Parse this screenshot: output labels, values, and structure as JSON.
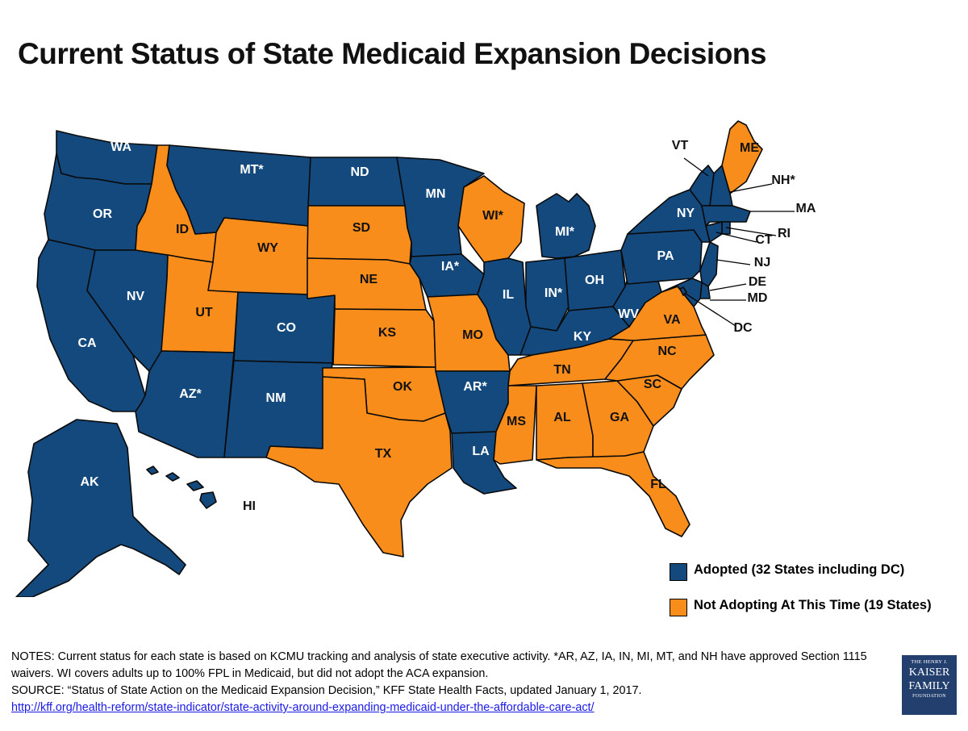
{
  "title": "Current Status of State Medicaid Expansion Decisions",
  "colors": {
    "adopted": "#14497d",
    "not_adopting": "#f98d1c",
    "label_on_adopted": "#ffffff",
    "label_on_not": "#111111"
  },
  "states": [
    {
      "abbr": "WA",
      "label": "WA",
      "status": "adopted"
    },
    {
      "abbr": "OR",
      "label": "OR",
      "status": "adopted"
    },
    {
      "abbr": "CA",
      "label": "CA",
      "status": "adopted"
    },
    {
      "abbr": "NV",
      "label": "NV",
      "status": "adopted"
    },
    {
      "abbr": "ID",
      "label": "ID",
      "status": "not_adopting"
    },
    {
      "abbr": "MT",
      "label": "MT*",
      "status": "adopted"
    },
    {
      "abbr": "WY",
      "label": "WY",
      "status": "not_adopting"
    },
    {
      "abbr": "UT",
      "label": "UT",
      "status": "not_adopting"
    },
    {
      "abbr": "AZ",
      "label": "AZ*",
      "status": "adopted"
    },
    {
      "abbr": "CO",
      "label": "CO",
      "status": "adopted"
    },
    {
      "abbr": "NM",
      "label": "NM",
      "status": "adopted"
    },
    {
      "abbr": "ND",
      "label": "ND",
      "status": "adopted"
    },
    {
      "abbr": "SD",
      "label": "SD",
      "status": "not_adopting"
    },
    {
      "abbr": "NE",
      "label": "NE",
      "status": "not_adopting"
    },
    {
      "abbr": "KS",
      "label": "KS",
      "status": "not_adopting"
    },
    {
      "abbr": "OK",
      "label": "OK",
      "status": "not_adopting"
    },
    {
      "abbr": "TX",
      "label": "TX",
      "status": "not_adopting"
    },
    {
      "abbr": "MN",
      "label": "MN",
      "status": "adopted"
    },
    {
      "abbr": "IA",
      "label": "IA*",
      "status": "adopted"
    },
    {
      "abbr": "MO",
      "label": "MO",
      "status": "not_adopting"
    },
    {
      "abbr": "AR",
      "label": "AR*",
      "status": "adopted"
    },
    {
      "abbr": "LA",
      "label": "LA",
      "status": "adopted"
    },
    {
      "abbr": "WI",
      "label": "WI*",
      "status": "not_adopting"
    },
    {
      "abbr": "IL",
      "label": "IL",
      "status": "adopted"
    },
    {
      "abbr": "MI",
      "label": "MI*",
      "status": "adopted"
    },
    {
      "abbr": "IN",
      "label": "IN*",
      "status": "adopted"
    },
    {
      "abbr": "OH",
      "label": "OH",
      "status": "adopted"
    },
    {
      "abbr": "KY",
      "label": "KY",
      "status": "adopted"
    },
    {
      "abbr": "TN",
      "label": "TN",
      "status": "not_adopting"
    },
    {
      "abbr": "MS",
      "label": "MS",
      "status": "not_adopting"
    },
    {
      "abbr": "AL",
      "label": "AL",
      "status": "not_adopting"
    },
    {
      "abbr": "GA",
      "label": "GA",
      "status": "not_adopting"
    },
    {
      "abbr": "FL",
      "label": "FL",
      "status": "not_adopting"
    },
    {
      "abbr": "SC",
      "label": "SC",
      "status": "not_adopting"
    },
    {
      "abbr": "NC",
      "label": "NC",
      "status": "not_adopting"
    },
    {
      "abbr": "VA",
      "label": "VA",
      "status": "not_adopting"
    },
    {
      "abbr": "WV",
      "label": "WV",
      "status": "adopted"
    },
    {
      "abbr": "PA",
      "label": "PA",
      "status": "adopted"
    },
    {
      "abbr": "NY",
      "label": "NY",
      "status": "adopted"
    },
    {
      "abbr": "VT",
      "label": "VT",
      "status": "adopted"
    },
    {
      "abbr": "NH",
      "label": "NH*",
      "status": "adopted"
    },
    {
      "abbr": "ME",
      "label": "ME",
      "status": "not_adopting"
    },
    {
      "abbr": "MA",
      "label": "MA",
      "status": "adopted"
    },
    {
      "abbr": "RI",
      "label": "RI",
      "status": "adopted"
    },
    {
      "abbr": "CT",
      "label": "CT",
      "status": "adopted"
    },
    {
      "abbr": "NJ",
      "label": "NJ",
      "status": "adopted"
    },
    {
      "abbr": "DE",
      "label": "DE",
      "status": "adopted"
    },
    {
      "abbr": "MD",
      "label": "MD",
      "status": "adopted"
    },
    {
      "abbr": "DC",
      "label": "DC",
      "status": "adopted"
    },
    {
      "abbr": "AK",
      "label": "AK",
      "status": "adopted"
    },
    {
      "abbr": "HI",
      "label": "HI",
      "status": "adopted"
    }
  ],
  "legend": {
    "adopted": "Adopted (32 States including DC)",
    "not_adopting": "Not Adopting At This Time (19 States)"
  },
  "notes": {
    "line1": "NOTES: Current status for each state is based on KCMU tracking and analysis of state executive activity. *AR, AZ, IA, IN, MI, MT, and NH have approved Section 1115 waivers. WI covers adults up to 100% FPL in Medicaid, but did not adopt the ACA expansion.",
    "source": "SOURCE: “Status of State Action on the Medicaid Expansion Decision,” KFF State Health Facts, updated January 1, 2017.",
    "link": "http://kff.org/health-reform/state-indicator/state-activity-around-expanding-medicaid-under-the-affordable-care-act/"
  },
  "logo": {
    "line1": "THE HENRY J.",
    "line2": "KAISER",
    "line3": "FAMILY",
    "line4": "FOUNDATION"
  }
}
